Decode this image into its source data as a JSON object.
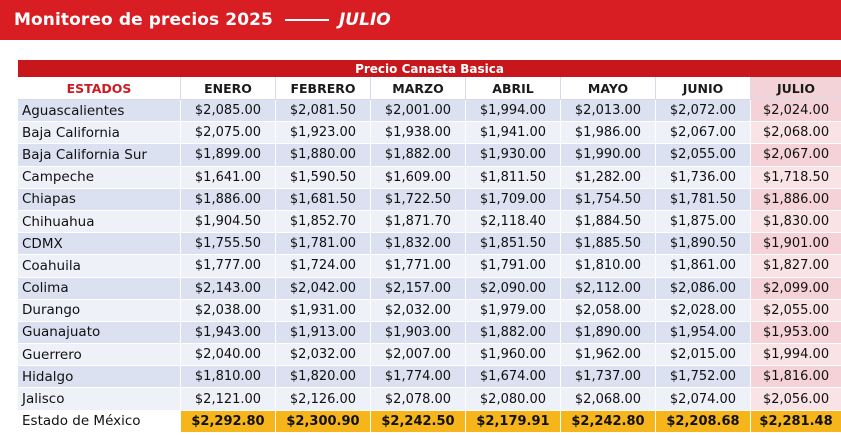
{
  "banner": {
    "title": "Monitoreo de precios 2025",
    "month": "JULIO"
  },
  "table": {
    "super_header": "Precio Canasta Basica",
    "columns": [
      "ESTADOS",
      "ENERO",
      "FEBRERO",
      "MARZO",
      "ABRIL",
      "MAYO",
      "JUNIO",
      "JULIO"
    ],
    "rows": [
      {
        "state": "Aguascalientes",
        "values": [
          "$2,085.00",
          "$2,081.50",
          "$2,001.00",
          "$1,994.00",
          "$2,013.00",
          "$2,072.00",
          "$2,024.00"
        ]
      },
      {
        "state": "Baja California",
        "values": [
          "$2,075.00",
          "$1,923.00",
          "$1,938.00",
          "$1,941.00",
          "$1,986.00",
          "$2,067.00",
          "$2,068.00"
        ]
      },
      {
        "state": "Baja California Sur",
        "values": [
          "$1,899.00",
          "$1,880.00",
          "$1,882.00",
          "$1,930.00",
          "$1,990.00",
          "$2,055.00",
          "$2,067.00"
        ]
      },
      {
        "state": "Campeche",
        "values": [
          "$1,641.00",
          "$1,590.50",
          "$1,609.00",
          "$1,811.50",
          "$1,282.00",
          "$1,736.00",
          "$1,718.50"
        ]
      },
      {
        "state": "Chiapas",
        "values": [
          "$1,886.00",
          "$1,681.50",
          "$1,722.50",
          "$1,709.00",
          "$1,754.50",
          "$1,781.50",
          "$1,886.00"
        ]
      },
      {
        "state": "Chihuahua",
        "values": [
          "$1,904.50",
          "$1,852.70",
          "$1,871.70",
          "$2,118.40",
          "$1,884.50",
          "$1,875.00",
          "$1,830.00"
        ]
      },
      {
        "state": "CDMX",
        "values": [
          "$1,755.50",
          "$1,781.00",
          "$1,832.00",
          "$1,851.50",
          "$1,885.50",
          "$1,890.50",
          "$1,901.00"
        ]
      },
      {
        "state": "Coahuila",
        "values": [
          "$1,777.00",
          "$1,724.00",
          "$1,771.00",
          "$1,791.00",
          "$1,810.00",
          "$1,861.00",
          "$1,827.00"
        ]
      },
      {
        "state": "Colima",
        "values": [
          "$2,143.00",
          "$2,042.00",
          "$2,157.00",
          "$2,090.00",
          "$2,112.00",
          "$2,086.00",
          "$2,099.00"
        ]
      },
      {
        "state": "Durango",
        "values": [
          "$2,038.00",
          "$1,931.00",
          "$2,032.00",
          "$1,979.00",
          "$2,058.00",
          "$2,028.00",
          "$2,055.00"
        ]
      },
      {
        "state": "Guanajuato",
        "values": [
          "$1,943.00",
          "$1,913.00",
          "$1,903.00",
          "$1,882.00",
          "$1,890.00",
          "$1,954.00",
          "$1,953.00"
        ]
      },
      {
        "state": "Guerrero",
        "values": [
          "$2,040.00",
          "$2,032.00",
          "$2,007.00",
          "$1,960.00",
          "$1,962.00",
          "$2,015.00",
          "$1,994.00"
        ]
      },
      {
        "state": "Hidalgo",
        "values": [
          "$1,810.00",
          "$1,820.00",
          "$1,774.00",
          "$1,674.00",
          "$1,737.00",
          "$1,752.00",
          "$1,816.00"
        ]
      },
      {
        "state": "Jalisco",
        "values": [
          "$2,121.00",
          "$2,126.00",
          "$2,078.00",
          "$2,080.00",
          "$2,068.00",
          "$2,074.00",
          "$2,056.00"
        ]
      },
      {
        "state": "Estado de México",
        "values": [
          "$2,292.80",
          "$2,300.90",
          "$2,242.50",
          "$2,179.91",
          "$2,242.80",
          "$2,208.68",
          "$2,281.48"
        ],
        "highlight": true
      }
    ]
  },
  "colors": {
    "banner_red": "#d81e22",
    "header_red": "#c8161d",
    "row_blue": "#dbe1f0",
    "last_col_pink": "#f4d2d8",
    "highlight_gold": "#f7b51c"
  }
}
